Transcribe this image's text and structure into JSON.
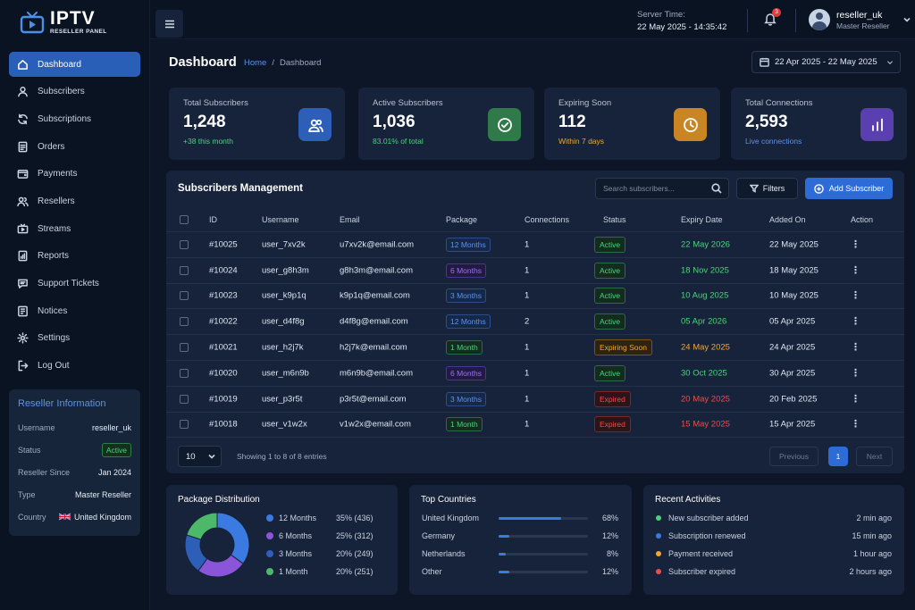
{
  "app": {
    "logo_title": "IPTV",
    "logo_subtitle": "RESELLER PANEL"
  },
  "sidebar": {
    "items": [
      {
        "label": "Dashboard",
        "icon": "home-icon",
        "active": true
      },
      {
        "label": "Subscribers",
        "icon": "user-icon"
      },
      {
        "label": "Subscriptions",
        "icon": "refresh-icon"
      },
      {
        "label": "Orders",
        "icon": "document-icon"
      },
      {
        "label": "Payments",
        "icon": "wallet-icon"
      },
      {
        "label": "Resellers",
        "icon": "users-icon"
      },
      {
        "label": "Streams",
        "icon": "tv-icon"
      },
      {
        "label": "Reports",
        "icon": "report-icon"
      },
      {
        "label": "Support Tickets",
        "icon": "chat-icon"
      },
      {
        "label": "Notices",
        "icon": "notice-icon"
      },
      {
        "label": "Settings",
        "icon": "gear-icon"
      },
      {
        "label": "Log Out",
        "icon": "logout-icon"
      }
    ]
  },
  "reseller_info": {
    "title": "Reseller Information",
    "rows": [
      {
        "key": "Username",
        "value": "reseller_uk"
      },
      {
        "key": "Status",
        "value": "Active"
      },
      {
        "key": "Reseller Since",
        "value": "Jan 2024"
      },
      {
        "key": "Type",
        "value": "Master Reseller"
      },
      {
        "key": "Country",
        "value": "United Kingdom"
      }
    ]
  },
  "topbar": {
    "server_label": "Server Time:",
    "server_time": "22 May 2025 - 14:35:42",
    "notification_count": "3",
    "user_name": "reseller_uk",
    "user_role": "Master Reseller"
  },
  "header": {
    "title": "Dashboard",
    "crumb_home": "Home",
    "crumb_sep": "/",
    "crumb_current": "Dashboard",
    "date_range": "22 Apr 2025 - 22 May 2025"
  },
  "stats": [
    {
      "label": "Total Subscribers",
      "value": "1,248",
      "sub": "+38 this month",
      "sub_color": "#4cd37a",
      "icon": "users-icon",
      "icon_bg": "#2d5fb8"
    },
    {
      "label": "Active Subscribers",
      "value": "1,036",
      "sub": "83.01% of total",
      "sub_color": "#4cd37a",
      "icon": "check-circle-icon",
      "icon_bg": "#2f7a48"
    },
    {
      "label": "Expiring Soon",
      "value": "112",
      "sub": "Within 7 days",
      "sub_color": "#f0a830",
      "icon": "clock-icon",
      "icon_bg": "#c98424"
    },
    {
      "label": "Total Connections",
      "value": "2,593",
      "sub": "Live connections",
      "sub_color": "#5c93e6",
      "icon": "bar-chart-icon",
      "icon_bg": "#5a3fb0"
    }
  ],
  "subscribers": {
    "title": "Subscribers Management",
    "search_placeholder": "Search subscribers...",
    "filters_label": "Filters",
    "add_label": "Add Subscriber",
    "columns": [
      "ID",
      "Username",
      "Email",
      "Package",
      "Connections",
      "Status",
      "Expiry Date",
      "Added On",
      "Action"
    ],
    "rows": [
      {
        "id": "#10025",
        "username": "user_7xv2k",
        "email": "u7xv2k@email.com",
        "package": "12 Months",
        "pkg_color": "blue",
        "connections": "1",
        "status": "Active",
        "status_class": "active",
        "expiry": "22 May 2026",
        "expiry_class": "exp-green",
        "added": "22 May 2025"
      },
      {
        "id": "#10024",
        "username": "user_g8h3m",
        "email": "g8h3m@email.com",
        "package": "6 Months",
        "pkg_color": "purple",
        "connections": "1",
        "status": "Active",
        "status_class": "active",
        "expiry": "18 Nov 2025",
        "expiry_class": "exp-green",
        "added": "18 May 2025"
      },
      {
        "id": "#10023",
        "username": "user_k9p1q",
        "email": "k9p1q@email.com",
        "package": "3 Months",
        "pkg_color": "blue",
        "connections": "1",
        "status": "Active",
        "status_class": "active",
        "expiry": "10 Aug 2025",
        "expiry_class": "exp-green",
        "added": "10 May 2025"
      },
      {
        "id": "#10022",
        "username": "user_d4f8g",
        "email": "d4f8g@email.com",
        "package": "12 Months",
        "pkg_color": "blue",
        "connections": "2",
        "status": "Active",
        "status_class": "active",
        "expiry": "05 Apr 2026",
        "expiry_class": "exp-green",
        "added": "05 Apr 2025"
      },
      {
        "id": "#10021",
        "username": "user_h2j7k",
        "email": "h2j7k@email.com",
        "package": "1 Month",
        "pkg_color": "green",
        "connections": "1",
        "status": "Expiring Soon",
        "status_class": "expiring",
        "expiry": "24 May 2025",
        "expiry_class": "exp-orange",
        "added": "24 Apr 2025"
      },
      {
        "id": "#10020",
        "username": "user_m6n9b",
        "email": "m6n9b@email.com",
        "package": "6 Months",
        "pkg_color": "purple",
        "connections": "1",
        "status": "Active",
        "status_class": "active",
        "expiry": "30 Oct 2025",
        "expiry_class": "exp-green",
        "added": "30 Apr 2025"
      },
      {
        "id": "#10019",
        "username": "user_p3r5t",
        "email": "p3r5t@email.com",
        "package": "3 Months",
        "pkg_color": "blue",
        "connections": "1",
        "status": "Expired",
        "status_class": "expired",
        "expiry": "20 May 2025",
        "expiry_class": "exp-red",
        "added": "20 Feb 2025"
      },
      {
        "id": "#10018",
        "username": "user_v1w2x",
        "email": "v1w2x@email.com",
        "package": "1 Month",
        "pkg_color": "green",
        "connections": "1",
        "status": "Expired",
        "status_class": "expired",
        "expiry": "15 May 2025",
        "expiry_class": "exp-red",
        "added": "15 Apr 2025"
      }
    ],
    "page_size": "10",
    "showing": "Showing 1 to 8 of 8 entries",
    "prev_label": "Previous",
    "current_page": "1",
    "next_label": "Next"
  },
  "package_distribution": {
    "title": "Package Distribution",
    "items": [
      {
        "label": "12 Months",
        "pct": "35% (436)",
        "share": 35,
        "color": "#3b7ae0"
      },
      {
        "label": "6 Months",
        "pct": "25% (312)",
        "share": 25,
        "color": "#8a55d8"
      },
      {
        "label": "3 Months",
        "pct": "20% (249)",
        "share": 20,
        "color": "#2d5fb8"
      },
      {
        "label": "1 Month",
        "pct": "20% (251)",
        "share": 20,
        "color": "#4cb86a"
      }
    ]
  },
  "top_countries": {
    "title": "Top Countries",
    "items": [
      {
        "name": "United Kingdom",
        "pct": "68%",
        "value": 68
      },
      {
        "name": "Germany",
        "pct": "12%",
        "value": 12
      },
      {
        "name": "Netherlands",
        "pct": "8%",
        "value": 8
      },
      {
        "name": "Other",
        "pct": "12%",
        "value": 12
      }
    ]
  },
  "recent_activities": {
    "title": "Recent Activities",
    "items": [
      {
        "text": "New subscriber added",
        "time": "2 min ago",
        "color": "#4cd37a"
      },
      {
        "text": "Subscription renewed",
        "time": "15 min ago",
        "color": "#3b7ae0"
      },
      {
        "text": "Payment received",
        "time": "1 hour ago",
        "color": "#f0a830"
      },
      {
        "text": "Subscriber expired",
        "time": "2 hours ago",
        "color": "#ee4c4c"
      }
    ]
  }
}
